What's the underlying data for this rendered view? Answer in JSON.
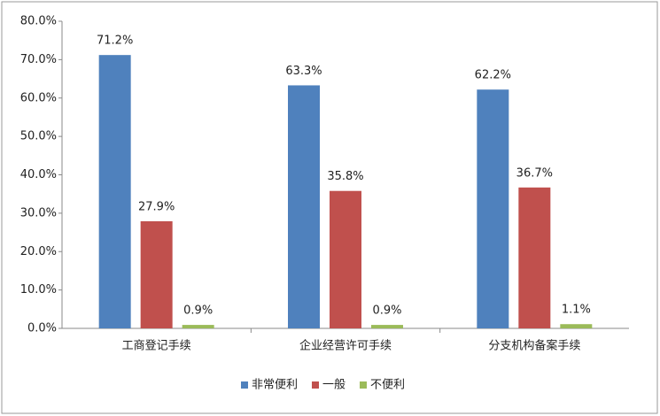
{
  "chart_data": {
    "type": "bar",
    "categories": [
      "工商登记手续",
      "企业经营许可手续",
      "分支机构备案手续"
    ],
    "series": [
      {
        "name": "非常便利",
        "color": "#4f81bd",
        "values": [
          71.2,
          63.3,
          62.2
        ],
        "value_labels": [
          "71.2%",
          "63.3%",
          "62.2%"
        ]
      },
      {
        "name": "一般",
        "color": "#c0504d",
        "values": [
          27.9,
          35.8,
          36.7
        ],
        "value_labels": [
          "27.9%",
          "35.8%",
          "36.7%"
        ]
      },
      {
        "name": "不便利",
        "color": "#9bbb59",
        "values": [
          0.9,
          0.9,
          1.1
        ],
        "value_labels": [
          "0.9%",
          "0.9%",
          "1.1%"
        ]
      }
    ],
    "ylim": [
      0,
      80
    ],
    "yticks": [
      {
        "value": 0,
        "label": "0.0%"
      },
      {
        "value": 10,
        "label": "10.0%"
      },
      {
        "value": 20,
        "label": "20.0%"
      },
      {
        "value": 30,
        "label": "30.0%"
      },
      {
        "value": 40,
        "label": "40.0%"
      },
      {
        "value": 50,
        "label": "50.0%"
      },
      {
        "value": 60,
        "label": "60.0%"
      },
      {
        "value": 70,
        "label": "70.0%"
      },
      {
        "value": 80,
        "label": "80.0%"
      }
    ],
    "grid": false,
    "legend": "bottom"
  }
}
